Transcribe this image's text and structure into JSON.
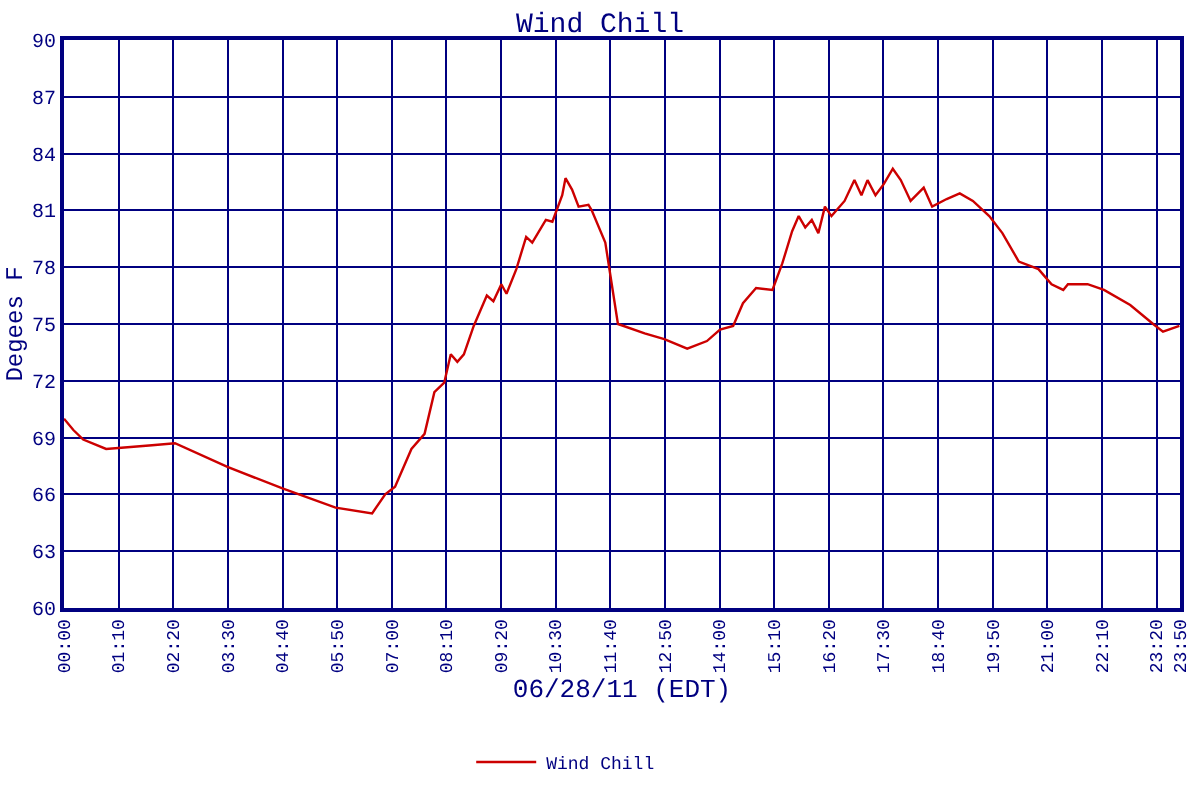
{
  "chart_data": {
    "type": "line",
    "title": "Wind Chill",
    "xlabel": "06/28/11 (EDT)",
    "ylabel": "Degees F",
    "x": [
      0,
      0.2,
      0.41,
      0.9,
      1.88,
      2.37,
      3.49,
      4.68,
      5.8,
      6.58,
      6.86,
      7.07,
      7.42,
      7.7,
      7.91,
      8.12,
      8.26,
      8.4,
      8.54,
      8.75,
      9.03,
      9.17,
      9.34,
      9.45,
      9.66,
      9.87,
      10.0,
      10.29,
      10.43,
      10.64,
      10.71,
      10.85,
      10.99,
      11.2,
      11.27,
      11.56,
      11.83,
      12.4,
      12.82,
      13.31,
      13.73,
      14.01,
      14.29,
      14.5,
      14.78,
      15.13,
      15.34,
      15.55,
      15.69,
      15.83,
      15.97,
      16.11,
      16.25,
      16.39,
      16.67,
      16.88,
      17.03,
      17.16,
      17.33,
      17.51,
      17.7,
      17.87,
      18.08,
      18.36,
      18.54,
      18.85,
      19.13,
      19.41,
      19.76,
      20.04,
      20.39,
      20.81,
      21.09,
      21.34,
      21.44,
      21.86,
      22.21,
      22.77,
      23.26,
      23.47,
      23.82
    ],
    "series": [
      {
        "name": "Wind Chill",
        "color": "#cc0000",
        "values": [
          70.0,
          69.4,
          68.9,
          68.4,
          68.6,
          68.7,
          67.45,
          66.3,
          65.3,
          65.0,
          66.0,
          66.4,
          68.4,
          69.2,
          71.4,
          71.9,
          73.4,
          73.0,
          73.4,
          74.9,
          76.5,
          76.2,
          77.1,
          76.6,
          77.9,
          79.6,
          79.3,
          80.5,
          80.4,
          81.8,
          82.7,
          82.1,
          81.2,
          81.3,
          81.0,
          79.3,
          75.0,
          74.5,
          74.2,
          73.7,
          74.1,
          74.7,
          74.9,
          76.1,
          76.9,
          76.8,
          78.2,
          79.9,
          80.7,
          80.1,
          80.5,
          79.8,
          81.2,
          80.7,
          81.5,
          82.6,
          81.8,
          82.6,
          81.8,
          82.4,
          83.2,
          82.6,
          81.5,
          82.2,
          81.2,
          81.6,
          81.9,
          81.5,
          80.7,
          79.8,
          78.3,
          77.9,
          77.1,
          76.8,
          77.1,
          77.1,
          76.8,
          76.0,
          75.0,
          74.6,
          74.9
        ]
      }
    ],
    "xlim": [
      0,
      23.8333
    ],
    "xticks": [
      {
        "value": 0,
        "label": "00:00"
      },
      {
        "value": 1.1667,
        "label": "01:10"
      },
      {
        "value": 2.3333,
        "label": "02:20"
      },
      {
        "value": 3.5,
        "label": "03:30"
      },
      {
        "value": 4.6667,
        "label": "04:40"
      },
      {
        "value": 5.8333,
        "label": "05:50"
      },
      {
        "value": 7,
        "label": "07:00"
      },
      {
        "value": 8.1667,
        "label": "08:10"
      },
      {
        "value": 9.3333,
        "label": "09:20"
      },
      {
        "value": 10.5,
        "label": "10:30"
      },
      {
        "value": 11.6667,
        "label": "11:40"
      },
      {
        "value": 12.8333,
        "label": "12:50"
      },
      {
        "value": 14,
        "label": "14:00"
      },
      {
        "value": 15.1667,
        "label": "15:10"
      },
      {
        "value": 16.3333,
        "label": "16:20"
      },
      {
        "value": 17.5,
        "label": "17:30"
      },
      {
        "value": 18.6667,
        "label": "18:40"
      },
      {
        "value": 19.8333,
        "label": "19:50"
      },
      {
        "value": 21,
        "label": "21:00"
      },
      {
        "value": 22.1667,
        "label": "22:10"
      },
      {
        "value": 23.3333,
        "label": "23:20"
      },
      {
        "value": 23.833,
        "label": "23:50"
      }
    ],
    "ylim": [
      60,
      90
    ],
    "yticks": [
      60,
      63,
      66,
      69,
      72,
      75,
      78,
      81,
      84,
      87,
      90
    ],
    "grid": true,
    "legend": "bottom",
    "marker": "none",
    "line_style": "solid"
  }
}
